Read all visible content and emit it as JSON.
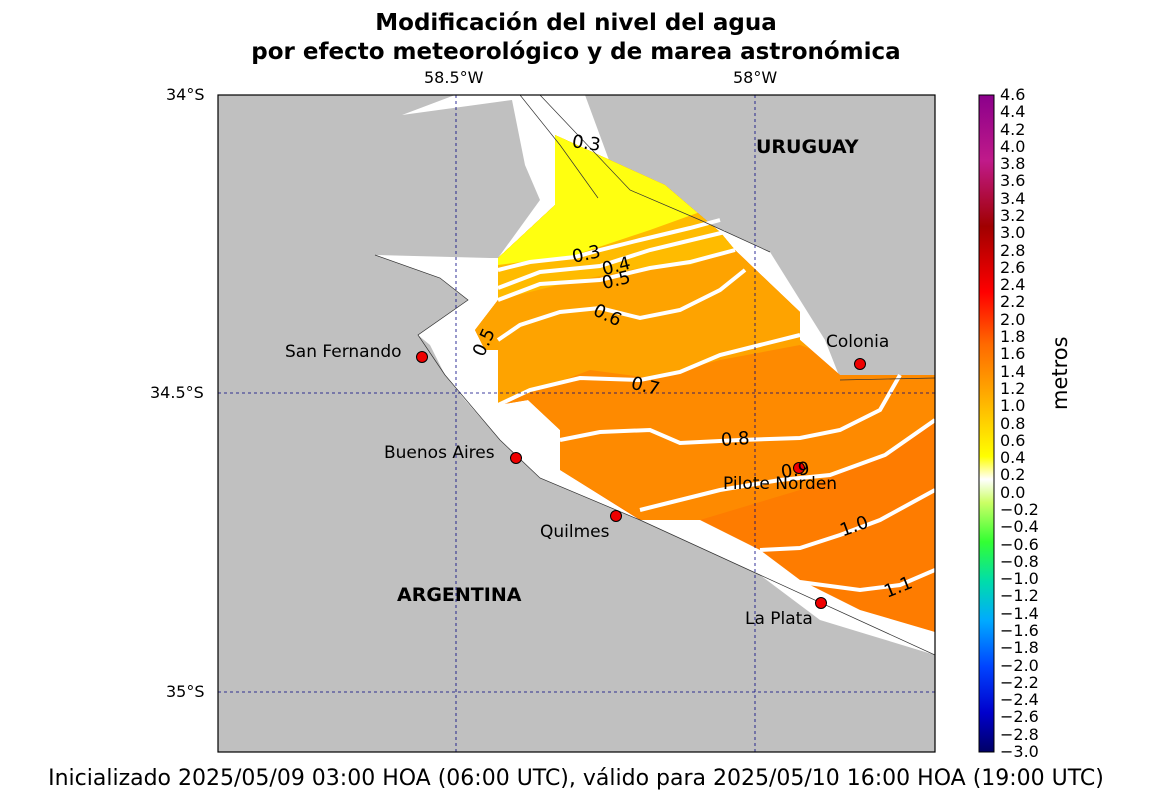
{
  "title_line1": "Modificación del nivel del agua",
  "title_line2": "por efecto meteorológico y de marea astronómica",
  "footer": "Inicializado 2025/05/09 03:00 HOA (06:00 UTC), válido para 2025/05/10 16:00 HOA (19:00 UTC)",
  "axes": {
    "lon_ticks": [
      "58.5°W",
      "58°W"
    ],
    "lat_ticks": [
      "34°S",
      "34.5°S",
      "35°S"
    ]
  },
  "countries": {
    "north": "URUGUAY",
    "south": "ARGENTINA"
  },
  "cities": [
    {
      "name": "San Fernando"
    },
    {
      "name": "Buenos Aires"
    },
    {
      "name": "Quilmes"
    },
    {
      "name": "Colonia"
    },
    {
      "name": "Pilote Norden"
    },
    {
      "name": "La Plata"
    }
  ],
  "contour_labels": [
    "0.3",
    "0.3",
    "0.4",
    "0.5",
    "0.5",
    "0.6",
    "0.7",
    "0.8",
    "0.9",
    "1.0",
    "1.1"
  ],
  "colorbar": {
    "unit_label": "metros",
    "ticks": [
      "4.6",
      "4.4",
      "4.2",
      "4.0",
      "3.8",
      "3.6",
      "3.4",
      "3.2",
      "3.0",
      "2.8",
      "2.6",
      "2.4",
      "2.2",
      "2.0",
      "1.8",
      "1.6",
      "1.4",
      "1.2",
      "1.0",
      "0.8",
      "0.6",
      "0.4",
      "0.2",
      "0.0",
      "−0.2",
      "−0.4",
      "−0.6",
      "−0.8",
      "−1.0",
      "−1.2",
      "−1.4",
      "−1.6",
      "−1.8",
      "−2.0",
      "−2.2",
      "−2.4",
      "−2.6",
      "−2.8",
      "−3.0"
    ],
    "colors_top_to_bottom": [
      "#8b008b",
      "#c01a8a",
      "#a00000",
      "#cc0000",
      "#ff0000",
      "#ff6a00",
      "#ff9a00",
      "#ffcc00",
      "#ffff00",
      "#ffffff",
      "#ccff66",
      "#33ff33",
      "#00ddaa",
      "#00aaff",
      "#0044ff",
      "#0000cc",
      "#000066"
    ]
  },
  "colors": {
    "land": "#c0c0c0",
    "water": "#ffffff",
    "contour_line": "#ffffff",
    "city_marker": "#ee0000",
    "grid": "#000080"
  }
}
